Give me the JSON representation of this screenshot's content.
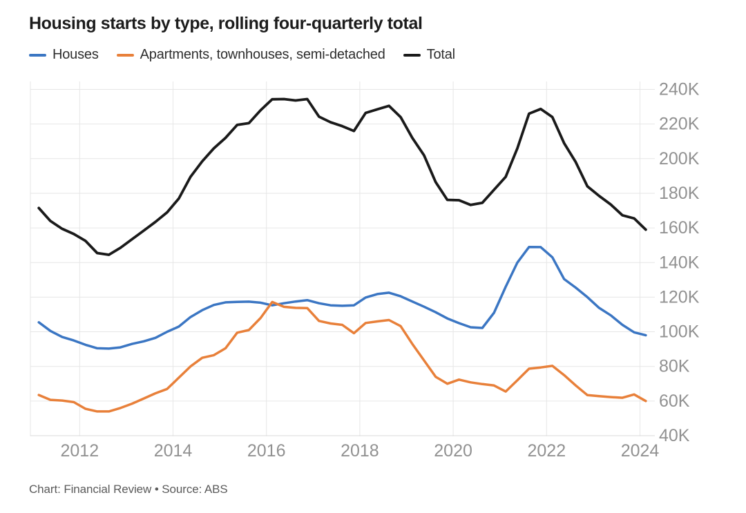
{
  "title": "Housing starts by type, rolling four-quarterly total",
  "footer": "Chart: Financial Review • Source: ABS",
  "colors": {
    "houses": "#3b76c3",
    "apartments": "#e8803a",
    "total": "#1a1a1a",
    "gridline": "#e6e6e6",
    "axis_baseline": "#d9d9d9",
    "tick_label": "#919191",
    "title_text": "#1c1c1c",
    "footer_text": "#5a5a5a"
  },
  "chart_data": {
    "type": "line",
    "title": "Housing starts by type, rolling four-quarterly total",
    "legend_position": "top",
    "grid": true,
    "x_axis": {
      "tick_labels": [
        "2012",
        "2014",
        "2016",
        "2018",
        "2020",
        "2022",
        "2024"
      ],
      "tick_years": [
        2012,
        2014,
        2016,
        2018,
        2020,
        2022,
        2024
      ],
      "range_years": [
        2011.0,
        2024.35
      ]
    },
    "y_axis": {
      "tick_labels": [
        "240K",
        "220K",
        "200K",
        "180K",
        "160K",
        "140K",
        "120K",
        "100K",
        "80K",
        "60K",
        "40K"
      ],
      "tick_values": [
        240,
        220,
        200,
        180,
        160,
        140,
        120,
        100,
        80,
        60,
        40
      ],
      "range": [
        40,
        240
      ]
    },
    "x_start": 2011.125,
    "x_step": 0.25,
    "quarters": [
      "2011 Q1",
      "2011 Q2",
      "2011 Q3",
      "2011 Q4",
      "2012 Q1",
      "2012 Q2",
      "2012 Q3",
      "2012 Q4",
      "2013 Q1",
      "2013 Q2",
      "2013 Q3",
      "2013 Q4",
      "2014 Q1",
      "2014 Q2",
      "2014 Q3",
      "2014 Q4",
      "2015 Q1",
      "2015 Q2",
      "2015 Q3",
      "2015 Q4",
      "2016 Q1",
      "2016 Q2",
      "2016 Q3",
      "2016 Q4",
      "2017 Q1",
      "2017 Q2",
      "2017 Q3",
      "2017 Q4",
      "2018 Q1",
      "2018 Q2",
      "2018 Q3",
      "2018 Q4",
      "2019 Q1",
      "2019 Q2",
      "2019 Q3",
      "2019 Q4",
      "2020 Q1",
      "2020 Q2",
      "2020 Q3",
      "2020 Q4",
      "2021 Q1",
      "2021 Q2",
      "2021 Q3",
      "2021 Q4",
      "2022 Q1",
      "2022 Q2",
      "2022 Q3",
      "2022 Q4",
      "2023 Q1",
      "2023 Q2",
      "2023 Q3",
      "2023 Q4",
      "2024 Q1"
    ],
    "unit_note": "values in thousands (K)",
    "series": [
      {
        "name": "Houses",
        "color": "#3b76c3",
        "values": [
          105.5,
          100.5,
          97,
          95,
          92.5,
          90.5,
          90.3,
          91,
          93,
          94.5,
          96.5,
          100,
          103,
          108.5,
          112.5,
          115.5,
          117,
          117.3,
          117.4,
          116.8,
          115.3,
          116.5,
          117.5,
          118.3,
          116.5,
          115.3,
          115,
          115.3,
          119.8,
          121.8,
          122.6,
          120.5,
          117.5,
          114.5,
          111.3,
          107.7,
          105,
          102.6,
          102.2,
          111,
          126,
          140,
          149,
          148.9,
          143,
          130.5,
          125.5,
          120,
          113.8,
          109.5,
          104,
          99.7,
          98
        ]
      },
      {
        "name": "Apartments, townhouses, semi-detached",
        "color": "#e8803a",
        "values": [
          63.5,
          60.7,
          60.3,
          59.4,
          55.5,
          54,
          54,
          56,
          58.5,
          61.5,
          64.5,
          67,
          73.5,
          80,
          85,
          86.5,
          90.5,
          99.5,
          101,
          108,
          117.2,
          114.4,
          113.8,
          113.7,
          106.3,
          104.8,
          104,
          99.2,
          105.1,
          106,
          106.8,
          103.3,
          93,
          83.5,
          74,
          70,
          72.4,
          70.8,
          69.8,
          69,
          65.5,
          72,
          78.7,
          79.4,
          80.3,
          75,
          69,
          63.4,
          62.8,
          62.3,
          61.9,
          63.8,
          60
        ]
      },
      {
        "name": "Total",
        "color": "#1a1a1a",
        "values": [
          171.5,
          164,
          159.5,
          156.5,
          152.5,
          145.5,
          144.5,
          148.5,
          153.5,
          158.5,
          163.5,
          169,
          177,
          189.5,
          198.5,
          206,
          212,
          219.5,
          220.5,
          228,
          234.3,
          234.4,
          233.6,
          234.4,
          224.3,
          221,
          218.8,
          216,
          226.4,
          228.5,
          230.5,
          224,
          212,
          202,
          186.5,
          176.2,
          176,
          173.3,
          174.5,
          182,
          189.5,
          206,
          226,
          228.7,
          224,
          209,
          198,
          184,
          178.5,
          173.5,
          167.3,
          165.5,
          159
        ]
      }
    ]
  }
}
